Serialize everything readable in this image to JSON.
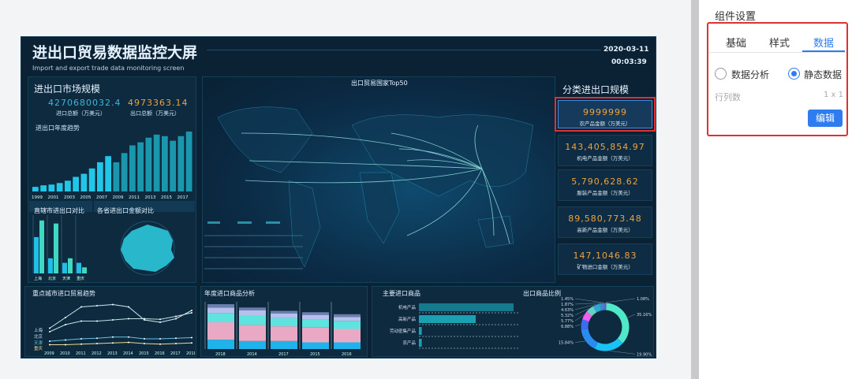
{
  "dashboard": {
    "title": "进出口贸易数据监控大屏",
    "subtitle": "Import and export trade data monitoring screen",
    "date": "2020-03-11",
    "time": "00:03:39",
    "market": {
      "heading": "进出口市场规模",
      "import_value": "4270680032.4",
      "import_label": "进口总额（万美元）",
      "export_value": "4973363.14",
      "export_label": "出口总额（万美元）",
      "trend_heading": "进出口年度趋势"
    },
    "city_compare": {
      "heading": "直辖市进出口对比"
    },
    "province_compare": {
      "heading": "各省进出口金额对比"
    },
    "map": {
      "heading": "出口贸易国家Top50"
    },
    "category": {
      "heading": "分类进出口规模",
      "cards": [
        {
          "value": "9999999",
          "label": "农产品金额（万美元）",
          "selected": true
        },
        {
          "value": "143,405,854.97",
          "label": "机电产品金额（万美元）"
        },
        {
          "value": "5,790,628.62",
          "label": "服装产品金额（万美元）"
        },
        {
          "value": "89,580,773.48",
          "label": "高新产品金额（万美元）"
        },
        {
          "value": "147,1046.83",
          "label": "矿物进口金额（万美元）"
        }
      ]
    },
    "city_trend": {
      "heading": "重点城市进口贸易趋势"
    },
    "annual_goods": {
      "heading": "年度进口商品分析"
    },
    "main_goods": {
      "heading": "主要进口商品"
    },
    "export_ratio": {
      "heading": "出口商品比例"
    }
  },
  "settings": {
    "title": "组件设置",
    "tabs": [
      "基础",
      "样式",
      "数据"
    ],
    "active_tab": "数据",
    "radio_options": [
      "数据分析",
      "静态数据"
    ],
    "selected_radio": "静态数据",
    "rows_cols_label": "行列数",
    "rows_cols_value": "1 x 1",
    "edit_button": "编辑",
    "accent": "#2f7bf0"
  },
  "chart_data": [
    {
      "type": "bar",
      "title": "进出口年度趋势",
      "categories": [
        "1999",
        "2000",
        "2001",
        "2002",
        "2003",
        "2004",
        "2005",
        "2006",
        "2007",
        "2008",
        "2009",
        "2010",
        "2011",
        "2012",
        "2013",
        "2014",
        "2015",
        "2016",
        "2017",
        "2018"
      ],
      "tick_labels": [
        "1999",
        "2001",
        "2003",
        "2005",
        "2007",
        "2009",
        "2011",
        "2013",
        "2015",
        "2017"
      ],
      "values": [
        6,
        8,
        9,
        11,
        14,
        19,
        23,
        30,
        38,
        46,
        38,
        50,
        60,
        64,
        70,
        74,
        72,
        66,
        72,
        78
      ]
    },
    {
      "type": "bar",
      "title": "直辖市进出口对比",
      "categories": [
        "上海",
        "北京",
        "天津",
        "重庆"
      ],
      "series": [
        {
          "values": [
            48,
            20,
            14,
            14
          ]
        },
        {
          "values": [
            70,
            66,
            20,
            8
          ]
        }
      ]
    },
    {
      "type": "line",
      "title": "重点城市进口贸易趋势",
      "x": [
        "2009",
        "2010",
        "2011",
        "2012",
        "2013",
        "2014",
        "2015",
        "2016",
        "2017",
        "2018"
      ],
      "series": [
        {
          "name": "上海",
          "values": [
            30,
            48,
            66,
            68,
            70,
            66,
            44,
            40,
            46,
            60
          ]
        },
        {
          "name": "北京",
          "values": [
            24,
            36,
            42,
            42,
            44,
            46,
            46,
            45,
            50,
            56
          ]
        },
        {
          "name": "天津",
          "values": [
            8,
            10,
            12,
            13,
            15,
            15,
            12,
            12,
            13,
            14
          ]
        },
        {
          "name": "重庆",
          "values": [
            2,
            2,
            3,
            4,
            5,
            6,
            4,
            3,
            4,
            5
          ]
        }
      ]
    },
    {
      "type": "bar",
      "title": "年度进口商品分析",
      "stacked": true,
      "categories": [
        "2018",
        "2014",
        "2017",
        "2015",
        "2016"
      ],
      "colors": [
        "#1fb3ea",
        "#e9a8c4",
        "#5fe3df",
        "#b7bfec",
        "#6b7fae"
      ],
      "series": [
        {
          "values": [
            14,
            12,
            12,
            10,
            10
          ]
        },
        {
          "values": [
            26,
            24,
            22,
            22,
            20
          ]
        },
        {
          "values": [
            14,
            14,
            12,
            12,
            12
          ]
        },
        {
          "values": [
            8,
            8,
            7,
            7,
            6
          ]
        },
        {
          "values": [
            5,
            4,
            4,
            4,
            4
          ]
        }
      ]
    },
    {
      "type": "bar",
      "orientation": "horizontal",
      "title": "主要进口商品",
      "categories": [
        "机电产品",
        "高新产品",
        "劳动密集产品",
        "农产品"
      ],
      "values": [
        100,
        60,
        3,
        3
      ]
    },
    {
      "type": "pie",
      "title": "出口商品比例",
      "labels": [
        "35.16%",
        "19.90%",
        "15.84%",
        "6.88%",
        "5.77%",
        "5.32%",
        "4.63%",
        "1.87%",
        "1.45%",
        "1.08%"
      ],
      "values": [
        35.16,
        19.9,
        15.84,
        6.88,
        5.77,
        5.32,
        4.63,
        1.87,
        1.45,
        1.08
      ],
      "colors": [
        "#4fe8c8",
        "#19c3f5",
        "#2a8cf0",
        "#3a6df0",
        "#f25ef0",
        "#6ad0c0",
        "#2da6d8",
        "#3a90c8",
        "#4c7fd0",
        "#7a4fd0"
      ]
    }
  ]
}
